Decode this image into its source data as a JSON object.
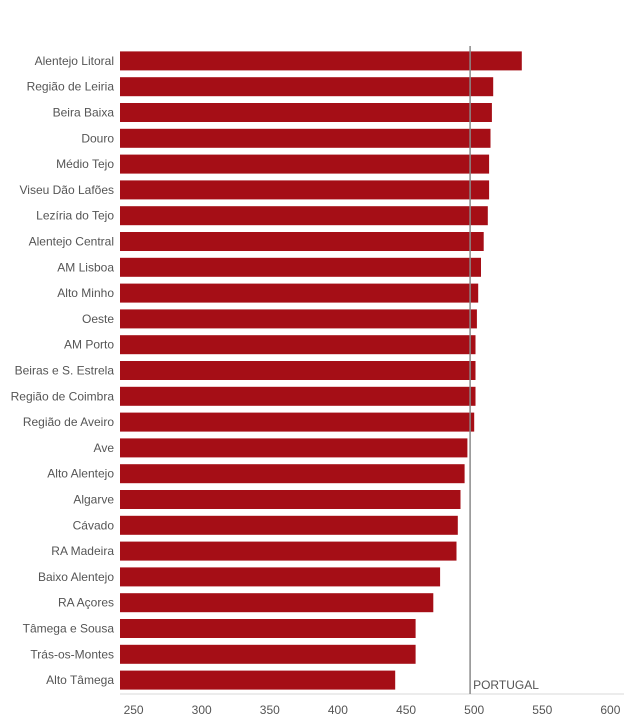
{
  "chart_data": {
    "type": "bar",
    "orientation": "horizontal",
    "title": "",
    "xlabel": "",
    "ylabel": "",
    "categories": [
      "Alentejo Litoral",
      "Região de Leiria",
      "Beira Baixa",
      "Douro",
      "Médio Tejo",
      "Viseu Dão Lafões",
      "Lezíria do Tejo",
      "Alentejo Central",
      "AM Lisboa",
      "Alto Minho",
      "Oeste",
      "AM Porto",
      "Beiras e S. Estrela",
      "Região de Coimbra",
      "Região de Aveiro",
      "Ave",
      "Alto Alentejo",
      "Algarve",
      "Cávado",
      "RA Madeira",
      "Baixo Alentejo",
      "RA Açores",
      "Tâmega e Sousa",
      "Trás-os-Montes",
      "Alto Tâmega"
    ],
    "values": [
      535,
      514,
      513,
      512,
      511,
      511,
      510,
      507,
      505,
      503,
      502,
      501,
      501,
      501,
      500,
      495,
      493,
      490,
      488,
      487,
      475,
      470,
      457,
      457,
      442
    ],
    "xlim": [
      240,
      610
    ],
    "xticks": [
      250,
      300,
      350,
      400,
      450,
      500,
      550,
      600
    ],
    "reference_line": {
      "label": "PORTUGAL",
      "value": 497
    },
    "colors": {
      "bar": "#a50e16",
      "reference": "#8a8a8a",
      "axis": "#d9d9d9",
      "text": "#555555"
    }
  }
}
